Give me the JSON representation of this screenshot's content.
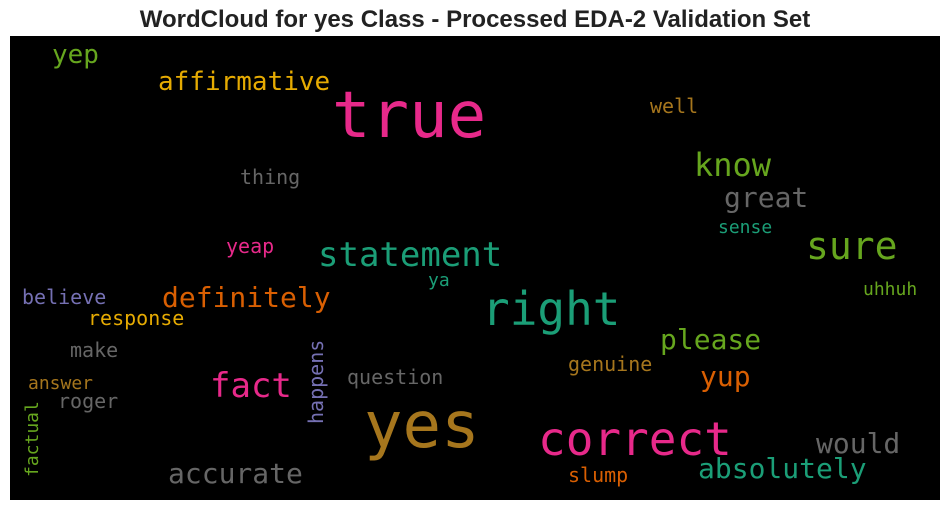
{
  "title": "WordCloud for yes Class - Processed EDA-2 Validation Set",
  "chart_data": {
    "type": "wordcloud",
    "title": "WordCloud for yes Class - Processed EDA-2 Validation Set",
    "background": "#000000",
    "words": [
      {
        "text": "yes",
        "color": "#a6761d"
      },
      {
        "text": "true",
        "color": "#e7298a"
      },
      {
        "text": "correct",
        "color": "#e7298a"
      },
      {
        "text": "right",
        "color": "#1b9e77"
      },
      {
        "text": "statement",
        "color": "#1b9e77"
      },
      {
        "text": "sure",
        "color": "#66a61e"
      },
      {
        "text": "fact",
        "color": "#e7298a"
      },
      {
        "text": "know",
        "color": "#66a61e"
      },
      {
        "text": "accurate",
        "color": "#666666"
      },
      {
        "text": "absolutely",
        "color": "#1b9e77"
      },
      {
        "text": "definitely",
        "color": "#d95f02"
      },
      {
        "text": "affirmative",
        "color": "#e6ab02"
      },
      {
        "text": "would",
        "color": "#666666"
      },
      {
        "text": "great",
        "color": "#666666"
      },
      {
        "text": "please",
        "color": "#66a61e"
      },
      {
        "text": "yup",
        "color": "#d95f02"
      },
      {
        "text": "yep",
        "color": "#66a61e"
      },
      {
        "text": "question",
        "color": "#666666"
      },
      {
        "text": "happens",
        "color": "#7570b3"
      },
      {
        "text": "thing",
        "color": "#666666"
      },
      {
        "text": "well",
        "color": "#a6761d"
      },
      {
        "text": "genuine",
        "color": "#a6761d"
      },
      {
        "text": "slump",
        "color": "#d95f02"
      },
      {
        "text": "response",
        "color": "#e6ab02"
      },
      {
        "text": "believe",
        "color": "#7570b3"
      },
      {
        "text": "make",
        "color": "#666666"
      },
      {
        "text": "yeap",
        "color": "#e7298a"
      },
      {
        "text": "sense",
        "color": "#1b9e77"
      },
      {
        "text": "uhhuh",
        "color": "#66a61e"
      },
      {
        "text": "answer",
        "color": "#a6761d"
      },
      {
        "text": "roger",
        "color": "#666666"
      },
      {
        "text": "factual",
        "color": "#66a61e"
      },
      {
        "text": "ya",
        "color": "#1b9e77"
      }
    ]
  }
}
